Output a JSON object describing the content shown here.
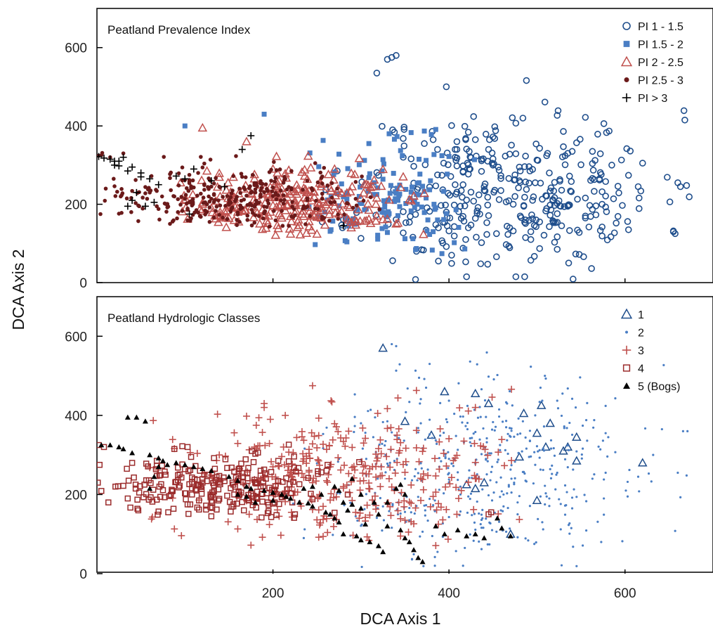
{
  "chart_data": {
    "xlabel": "DCA Axis 1",
    "ylabel": "DCA Axis 2",
    "xlim": [
      0,
      700
    ],
    "ylim": [
      0,
      700
    ],
    "xticks": [
      200,
      400,
      600
    ],
    "colors": {
      "dark_blue": "#1f4e8c",
      "light_blue": "#4a7ec4",
      "red": "#c0504d",
      "dark_red": "#6b1a1a",
      "black": "#000000"
    },
    "panels": [
      {
        "type": "scatter",
        "title": "Peatland Prevalence Index",
        "yticks": [
          0,
          200,
          400,
          600
        ],
        "show_xticks": false,
        "legend_position": "top-right",
        "series": [
          {
            "name": "PI 1 - 1.5",
            "marker": "circle-open",
            "color": "#1f4e8c",
            "size": 380,
            "cx": 470,
            "cy": 230,
            "sx": 85,
            "sy": 105,
            "xr": [
              255,
              675
            ],
            "yr": [
              5,
              585
            ],
            "seed": 11,
            "extra": [
              [
                335,
                575
              ],
              [
                340,
                580
              ],
              [
                330,
                570
              ],
              [
                660,
                255
              ],
              [
                670,
                248
              ],
              [
                615,
                245
              ]
            ]
          },
          {
            "name": "PI 1.5 - 2",
            "marker": "square",
            "color": "#4a7ec4",
            "size": 140,
            "cx": 335,
            "cy": 215,
            "sx": 45,
            "sy": 70,
            "xr": [
              235,
              430
            ],
            "yr": [
              50,
              430
            ],
            "seed": 22,
            "extra": [
              [
                100,
                400
              ],
              [
                190,
                430
              ]
            ]
          },
          {
            "name": "PI 2 - 2.5",
            "marker": "triangle-open",
            "color": "#c0504d",
            "size": 260,
            "cx": 220,
            "cy": 200,
            "sx": 65,
            "sy": 45,
            "xr": [
              95,
              410
            ],
            "yr": [
              120,
              470
            ],
            "seed": 33,
            "extra": [
              [
                130,
                190
              ],
              [
                160,
                190
              ],
              [
                140,
                180
              ],
              [
                120,
                395
              ],
              [
                170,
                360
              ]
            ]
          },
          {
            "name": "PI 2.5 - 3",
            "marker": "dot",
            "color": "#6b1a1a",
            "size": 320,
            "cx": 150,
            "cy": 215,
            "sx": 80,
            "sy": 45,
            "xr": [
              0,
              330
            ],
            "yr": [
              140,
              350
            ],
            "seed": 44,
            "extra": [
              [
                5,
                325
              ],
              [
                15,
                320
              ],
              [
                30,
                330
              ]
            ]
          },
          {
            "name": "PI > 3",
            "marker": "plus",
            "color": "#000000",
            "size": 0,
            "points": [
              [
                2,
                322
              ],
              [
                8,
                318
              ],
              [
                15,
                315
              ],
              [
                20,
                310
              ],
              [
                25,
                298
              ],
              [
                35,
                285
              ],
              [
                40,
                295
              ],
              [
                50,
                280
              ],
              [
                45,
                230
              ],
              [
                40,
                210
              ],
              [
                35,
                195
              ],
              [
                55,
                195
              ],
              [
                65,
                205
              ],
              [
                20,
                300
              ],
              [
                30,
                320
              ],
              [
                50,
                270
              ],
              [
                60,
                265
              ],
              [
                90,
                272
              ],
              [
                100,
                265
              ],
              [
                105,
                175
              ],
              [
                130,
                260
              ],
              [
                145,
                245
              ],
              [
                165,
                340
              ],
              [
                175,
                375
              ],
              [
                280,
                145
              ],
              [
                25,
                310
              ],
              [
                70,
                250
              ],
              [
                110,
                290
              ]
            ]
          }
        ]
      },
      {
        "type": "scatter",
        "title": "Peatland Hydrologic Classes",
        "yticks": [
          0,
          200,
          400,
          600
        ],
        "show_xticks": true,
        "legend_position": "top-right",
        "series": [
          {
            "name": "1",
            "marker": "triangle-open",
            "color": "#1f4e8c",
            "size": 0,
            "points": [
              [
                325,
                570
              ],
              [
                350,
                385
              ],
              [
                380,
                350
              ],
              [
                420,
                225
              ],
              [
                430,
                215
              ],
              [
                430,
                455
              ],
              [
                445,
                430
              ],
              [
                395,
                460
              ],
              [
                480,
                295
              ],
              [
                485,
                405
              ],
              [
                500,
                185
              ],
              [
                500,
                355
              ],
              [
                505,
                425
              ],
              [
                510,
                320
              ],
              [
                515,
                380
              ],
              [
                530,
                310
              ],
              [
                535,
                320
              ],
              [
                545,
                285
              ],
              [
                545,
                345
              ],
              [
                620,
                280
              ],
              [
                440,
                230
              ],
              [
                470,
                100
              ]
            ]
          },
          {
            "name": "2",
            "marker": "tiny-dot",
            "color": "#4a7ec4",
            "size": 480,
            "cx": 430,
            "cy": 260,
            "sx": 95,
            "sy": 115,
            "xr": [
              200,
              675
            ],
            "yr": [
              10,
              585
            ],
            "seed": 55,
            "extra": [
              [
                335,
                580
              ],
              [
                340,
                575
              ],
              [
                660,
                255
              ],
              [
                670,
                248
              ],
              [
                615,
                245
              ]
            ]
          },
          {
            "name": "3",
            "marker": "plus",
            "color": "#c0504d",
            "size": 340,
            "cx": 280,
            "cy": 240,
            "sx": 90,
            "sy": 85,
            "xr": [
              40,
              480
            ],
            "yr": [
              70,
              480
            ],
            "seed": 66,
            "extra": [
              [
                190,
                430
              ],
              [
                190,
                420
              ],
              [
                245,
                475
              ]
            ]
          },
          {
            "name": "4",
            "marker": "square-open",
            "color": "#9b2c2c",
            "size": 260,
            "cx": 140,
            "cy": 215,
            "sx": 70,
            "sy": 45,
            "xr": [
              0,
              300
            ],
            "yr": [
              140,
              340
            ],
            "seed": 77,
            "extra": [
              [
                2,
                325
              ],
              [
                8,
                320
              ],
              [
                40,
                280
              ],
              [
                445,
                150
              ],
              [
                448,
                155
              ]
            ]
          },
          {
            "name": "5 (Bogs)",
            "marker": "triangle-filled",
            "color": "#000000",
            "size": 0,
            "points": [
              [
                5,
                325
              ],
              [
                15,
                325
              ],
              [
                25,
                320
              ],
              [
                30,
                315
              ],
              [
                35,
                395
              ],
              [
                45,
                395
              ],
              [
                55,
                385
              ],
              [
                40,
                305
              ],
              [
                60,
                300
              ],
              [
                70,
                292
              ],
              [
                75,
                285
              ],
              [
                80,
                275
              ],
              [
                70,
                270
              ],
              [
                65,
                245
              ],
              [
                60,
                215
              ],
              [
                90,
                280
              ],
              [
                100,
                275
              ],
              [
                110,
                270
              ],
              [
                120,
                265
              ],
              [
                130,
                260
              ],
              [
                150,
                245
              ],
              [
                160,
                235
              ],
              [
                170,
                220
              ],
              [
                175,
                215
              ],
              [
                190,
                210
              ],
              [
                200,
                205
              ],
              [
                210,
                200
              ],
              [
                215,
                195
              ],
              [
                220,
                190
              ],
              [
                230,
                180
              ],
              [
                240,
                178
              ],
              [
                245,
                170
              ],
              [
                180,
                180
              ],
              [
                170,
                195
              ],
              [
                160,
                200
              ],
              [
                200,
                185
              ],
              [
                260,
                155
              ],
              [
                265,
                150
              ],
              [
                270,
                220
              ],
              [
                275,
                210
              ],
              [
                280,
                180
              ],
              [
                290,
                175
              ],
              [
                300,
                165
              ],
              [
                290,
                240
              ],
              [
                285,
                160
              ],
              [
                270,
                140
              ],
              [
                275,
                130
              ],
              [
                280,
                100
              ],
              [
                295,
                95
              ],
              [
                300,
                85
              ],
              [
                310,
                80
              ],
              [
                320,
                70
              ],
              [
                325,
                55
              ],
              [
                330,
                120
              ],
              [
                345,
                110
              ],
              [
                350,
                90
              ],
              [
                355,
                80
              ],
              [
                360,
                60
              ],
              [
                365,
                40
              ],
              [
                370,
                30
              ],
              [
                340,
                215
              ],
              [
                345,
                225
              ],
              [
                350,
                200
              ],
              [
                330,
                180
              ],
              [
                385,
                120
              ],
              [
                395,
                100
              ],
              [
                410,
                110
              ],
              [
                420,
                95
              ],
              [
                430,
                100
              ],
              [
                440,
                90
              ],
              [
                455,
                140
              ],
              [
                460,
                115
              ],
              [
                470,
                95
              ],
              [
                320,
                150
              ],
              [
                315,
                180
              ],
              [
                300,
                200
              ],
              [
                305,
                125
              ],
              [
                255,
                200
              ],
              [
                245,
                220
              ],
              [
                235,
                215
              ]
            ]
          }
        ]
      }
    ]
  }
}
